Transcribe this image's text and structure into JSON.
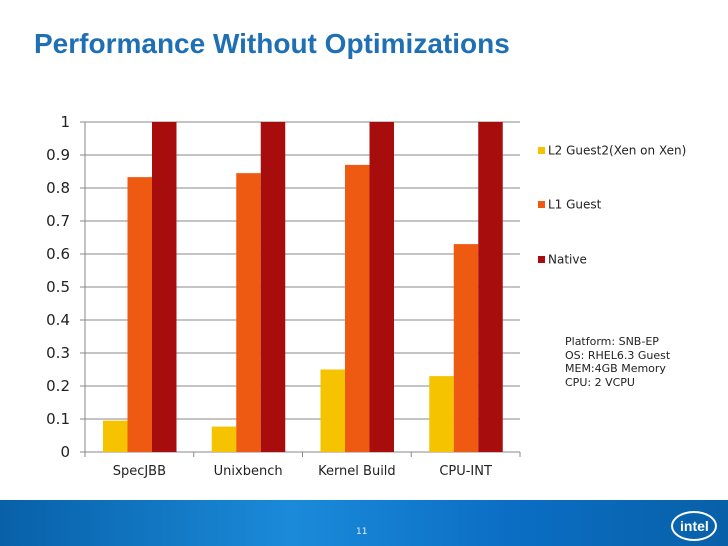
{
  "slide": {
    "title": "Performance Without Optimizations",
    "page_number": "11",
    "logo_text": "intel"
  },
  "platform_info": [
    "Platform: SNB-EP",
    "OS: RHEL6.3 Guest",
    "MEM:4GB Memory",
    "CPU: 2 VCPU"
  ],
  "colors": {
    "title": "#1f6fb5",
    "l2": "#f5c300",
    "l1": "#ef5a12",
    "native": "#a80d0d",
    "footer": "#0a6fc1"
  },
  "chart_data": {
    "type": "bar",
    "title": "",
    "xlabel": "",
    "ylabel": "",
    "ylim": [
      0,
      1
    ],
    "yticks": [
      "0",
      "0.1",
      "0.2",
      "0.3",
      "0.4",
      "0.5",
      "0.6",
      "0.7",
      "0.8",
      "0.9",
      "1"
    ],
    "categories": [
      "SpecJBB",
      "Unixbench",
      "Kernel Build",
      "CPU-INT"
    ],
    "series": [
      {
        "name": "L2 Guest2(Xen on Xen)",
        "color": "#f5c300",
        "values": [
          0.095,
          0.077,
          0.25,
          0.23
        ]
      },
      {
        "name": "L1 Guest",
        "color": "#ef5a12",
        "values": [
          0.833,
          0.845,
          0.87,
          0.63
        ]
      },
      {
        "name": "Native",
        "color": "#a80d0d",
        "values": [
          1.0,
          1.0,
          1.0,
          1.0
        ]
      }
    ],
    "legend_position": "right",
    "grid": true
  }
}
